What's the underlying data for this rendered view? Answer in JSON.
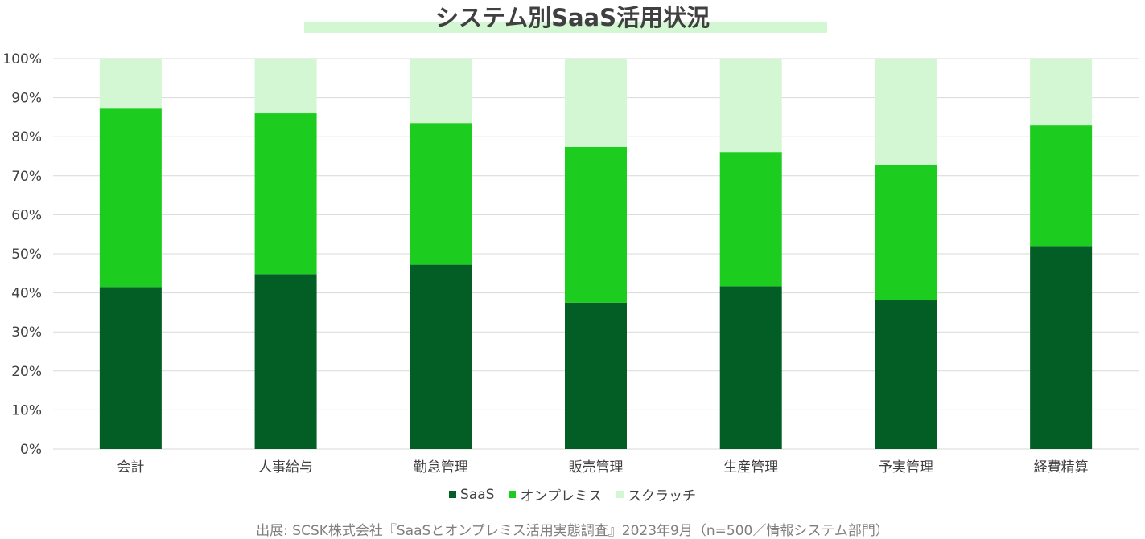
{
  "title": "システム別SaaS活用状況",
  "source": "出展: SCSK株式会社『SaaSとオンプレミス活用実態調査』2023年9月（n=500／情報システム部門）",
  "colors": {
    "saas": "#035e26",
    "onpremise": "#1ccd1f",
    "scratch": "#d3f7d3",
    "grid": "#d9d9d9",
    "axis_text": "#404040",
    "title_band": "#d3f7d3"
  },
  "chart_data": {
    "type": "bar",
    "stacked": true,
    "title": "システム別SaaS活用状況",
    "categories": [
      "会計",
      "人事給与",
      "勤怠管理",
      "販売管理",
      "生産管理",
      "予実管理",
      "経費精算"
    ],
    "series": [
      {
        "name": "SaaS",
        "values": [
          41.5,
          44.8,
          47.2,
          37.5,
          41.7,
          38.2,
          52.0
        ]
      },
      {
        "name": "オンプレミス",
        "values": [
          45.7,
          41.2,
          36.3,
          39.9,
          34.4,
          34.5,
          30.9
        ]
      },
      {
        "name": "スクラッチ",
        "values": [
          12.8,
          14.0,
          16.5,
          22.6,
          23.9,
          27.3,
          17.1
        ]
      }
    ],
    "ylim": [
      0,
      100
    ],
    "yticks": [
      "0%",
      "10%",
      "20%",
      "30%",
      "40%",
      "50%",
      "60%",
      "70%",
      "80%",
      "90%",
      "100%"
    ],
    "ytick_values": [
      0,
      10,
      20,
      30,
      40,
      50,
      60,
      70,
      80,
      90,
      100
    ],
    "grid": true,
    "legend_position": "bottom"
  }
}
